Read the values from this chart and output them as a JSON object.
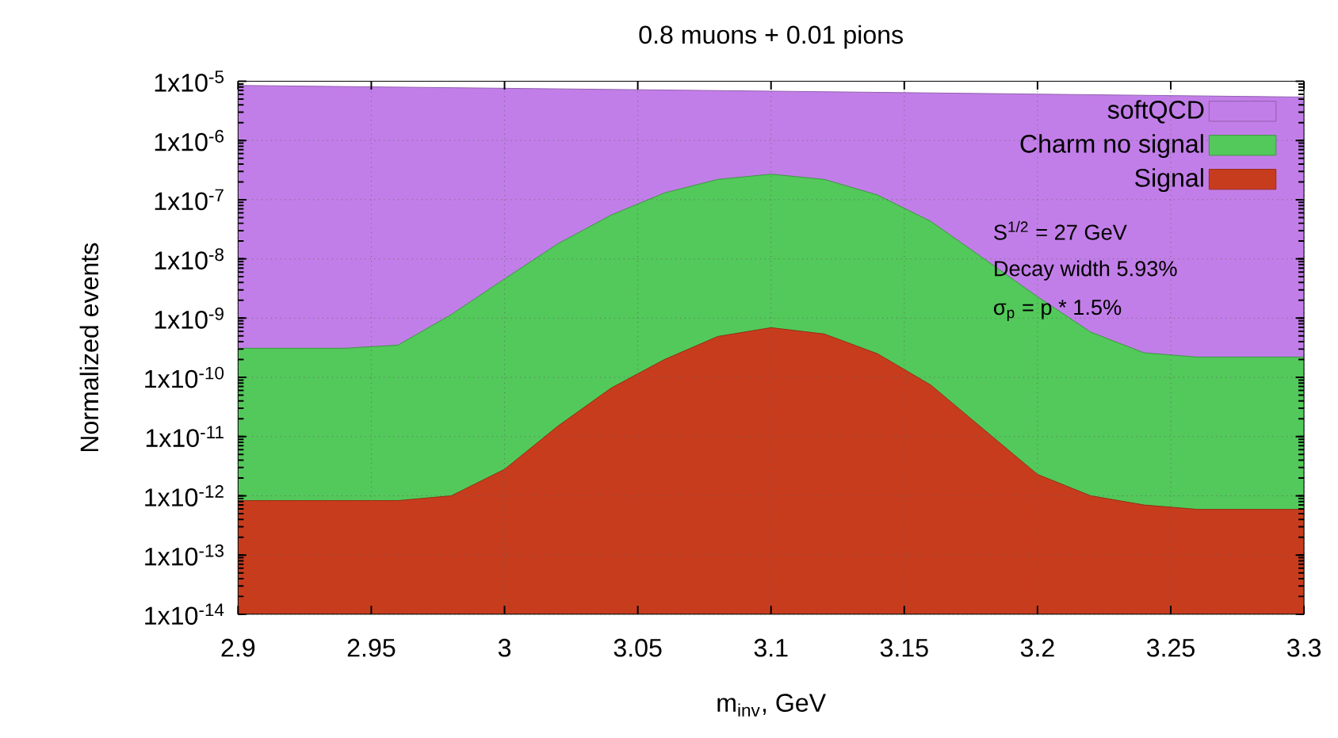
{
  "chart_data": {
    "type": "area",
    "title": "0.8 muons + 0.01 pions",
    "xlabel": "m$_{inv}$, GeV",
    "ylabel": "Normalized events",
    "log": "y",
    "grid": true,
    "legend": "top right",
    "xlim": [
      2.9,
      3.3
    ],
    "xticks": [
      2.9,
      2.95,
      3,
      3.05,
      3.1,
      3.15,
      3.2,
      3.25,
      3.3
    ],
    "ylim": [
      1e-14,
      1e-05
    ],
    "yticks": [
      {
        "value": 1e-14,
        "label": "1x10$^{-14}$"
      },
      {
        "value": 1e-13,
        "label": "1x10$^{-13}$"
      },
      {
        "value": 1e-12,
        "label": "1x10$^{-12}$"
      },
      {
        "value": 1e-11,
        "label": "1x10$^{-11}$"
      },
      {
        "value": 1e-10,
        "label": "1x10$^{-10}$"
      },
      {
        "value": 1e-09,
        "label": "1x10$^{-9}$"
      },
      {
        "value": 1e-08,
        "label": "1x10$^{-8}$"
      },
      {
        "value": 1e-07,
        "label": "1x10$^{-7}$"
      },
      {
        "value": 1e-06,
        "label": "1x10$^{-6}$"
      },
      {
        "value": 1e-05,
        "label": "1x10$^{-5}$"
      }
    ],
    "series": [
      {
        "name": "softQCD",
        "color": "#c27ee8",
        "x": [
          2.9,
          3.1,
          3.3
        ],
        "values": [
          8.5e-06,
          6.8e-06,
          5.4e-06
        ]
      },
      {
        "name": "Charm no signal",
        "color": "#52c95a",
        "x": [
          2.9,
          2.92,
          2.94,
          2.96,
          2.98,
          3.0,
          3.02,
          3.04,
          3.06,
          3.08,
          3.1,
          3.12,
          3.14,
          3.16,
          3.18,
          3.2,
          3.22,
          3.24,
          3.26,
          3.28,
          3.3
        ],
        "values": [
          3.1e-10,
          3.1e-10,
          3.1e-10,
          3.5e-10,
          1.15e-09,
          4.6e-09,
          1.8e-08,
          5.5e-08,
          1.3e-07,
          2.2e-07,
          2.7e-07,
          2.2e-07,
          1.2e-07,
          4.3e-08,
          1e-08,
          2.3e-09,
          5.8e-10,
          2.6e-10,
          2.2e-10,
          2.2e-10,
          2.2e-10
        ]
      },
      {
        "name": "Signal",
        "color": "#c83c1e",
        "x": [
          2.9,
          2.92,
          2.94,
          2.96,
          2.98,
          3.0,
          3.02,
          3.04,
          3.06,
          3.08,
          3.1,
          3.12,
          3.14,
          3.16,
          3.18,
          3.2,
          3.22,
          3.24,
          3.26,
          3.28,
          3.3
        ],
        "values": [
          8.3e-13,
          8.3e-13,
          8.3e-13,
          8.3e-13,
          1e-12,
          2.8e-12,
          1.5e-11,
          6.6e-11,
          2e-10,
          4.9e-10,
          6.9e-10,
          5.4e-10,
          2.5e-10,
          7.4e-11,
          1.3e-11,
          2.3e-12,
          1e-12,
          7e-13,
          5.9e-13,
          5.9e-13,
          5.9e-13
        ]
      }
    ],
    "annotations": [
      "S$^{1/2}$ = 27 GeV",
      "Decay width 5.93%",
      "σ$_{p}$ = p * 1.5%"
    ]
  }
}
